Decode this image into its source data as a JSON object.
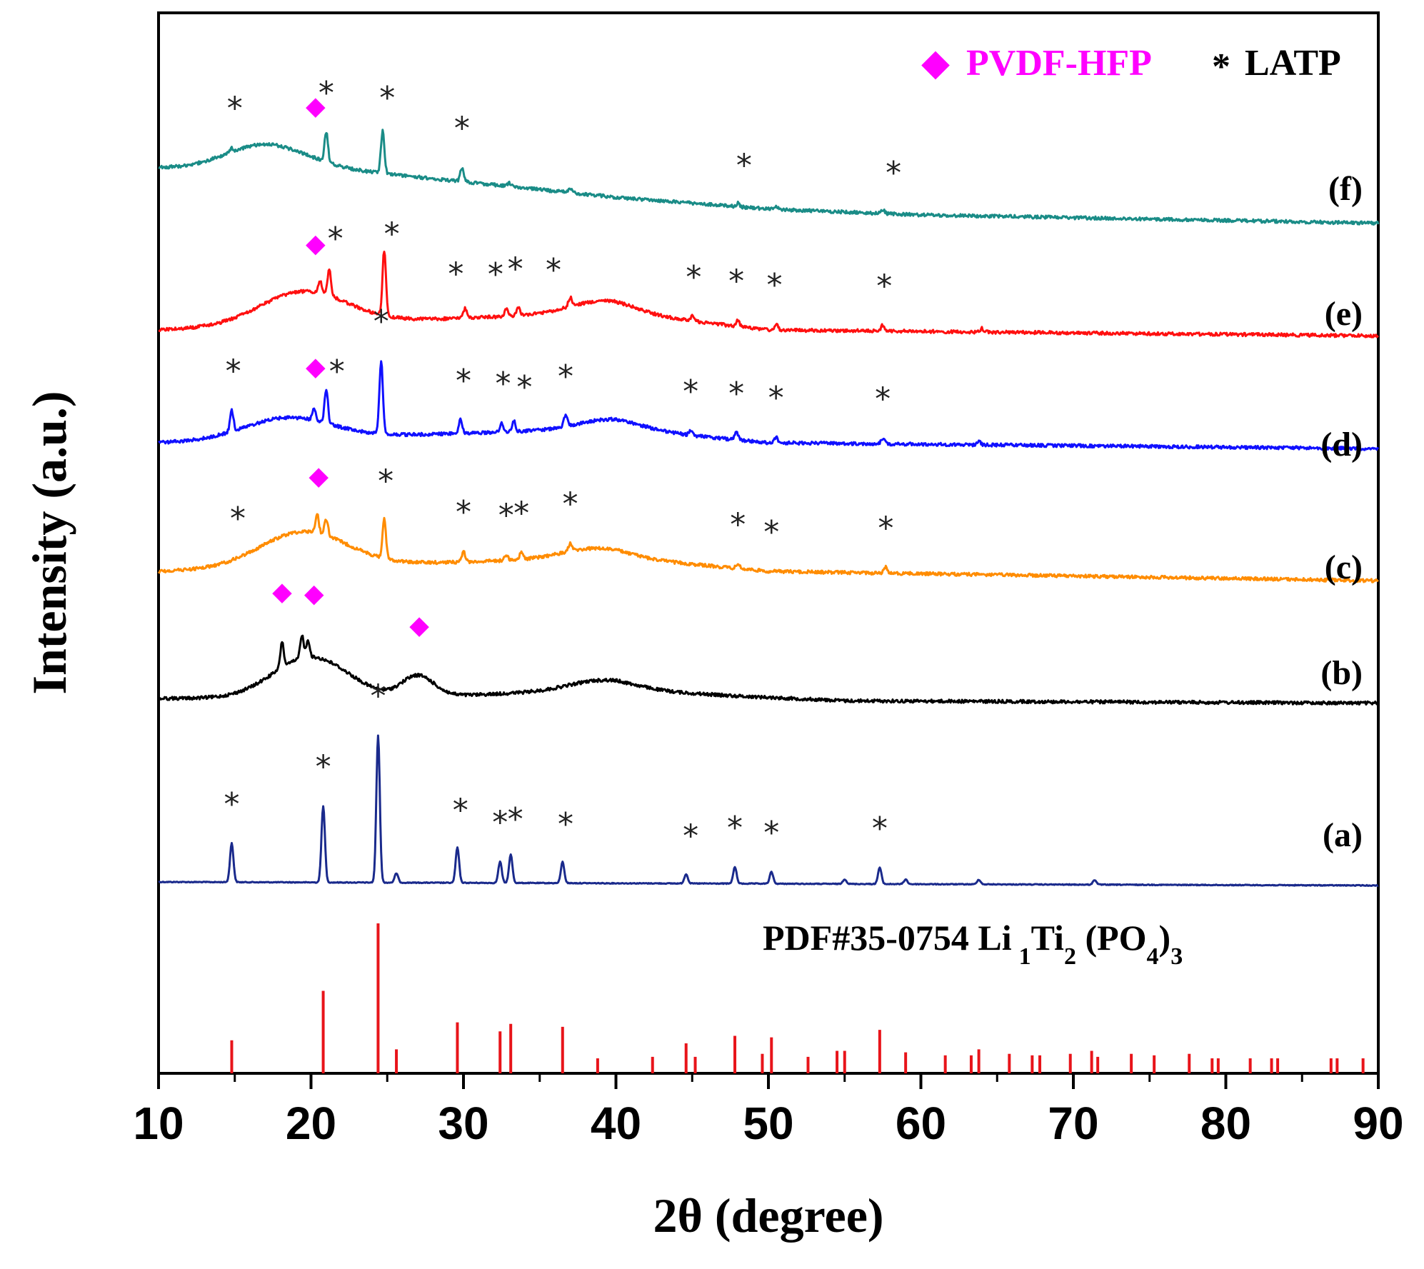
{
  "chart_data": {
    "type": "line",
    "title": "",
    "xlabel": "2θ (degree)",
    "ylabel": "Intensity (a.u.)",
    "xlim": [
      10,
      90
    ],
    "xticks": [
      10,
      20,
      30,
      40,
      50,
      60,
      70,
      80,
      90
    ],
    "yticks_shown": false,
    "legend": [
      {
        "marker": "◆",
        "label": "PVDF-HFP",
        "color": "#ff00ff",
        "position": "top-right"
      },
      {
        "marker": "*",
        "label": "LATP",
        "color": "#000000",
        "position": "top-right"
      }
    ],
    "reference": {
      "label_main": "PDF#35-0754 Li",
      "label_parts": [
        "1",
        "Ti",
        "2",
        " (PO",
        "4",
        ")",
        "3"
      ],
      "color": "#e8141a",
      "peaks": [
        [
          14.8,
          22
        ],
        [
          20.8,
          55
        ],
        [
          24.4,
          100
        ],
        [
          25.6,
          16
        ],
        [
          29.6,
          34
        ],
        [
          32.4,
          28
        ],
        [
          33.1,
          33
        ],
        [
          36.5,
          31
        ],
        [
          38.8,
          10
        ],
        [
          42.4,
          11
        ],
        [
          44.6,
          20
        ],
        [
          45.2,
          11
        ],
        [
          47.8,
          25
        ],
        [
          49.6,
          13
        ],
        [
          50.2,
          24
        ],
        [
          52.6,
          11
        ],
        [
          54.5,
          15
        ],
        [
          55.0,
          15
        ],
        [
          57.3,
          29
        ],
        [
          59.0,
          14
        ],
        [
          61.6,
          12
        ],
        [
          63.3,
          12
        ],
        [
          63.8,
          16
        ],
        [
          65.8,
          13
        ],
        [
          67.3,
          12
        ],
        [
          67.8,
          12
        ],
        [
          69.8,
          13
        ],
        [
          71.2,
          15
        ],
        [
          71.6,
          11
        ],
        [
          73.8,
          13
        ],
        [
          75.3,
          12
        ],
        [
          77.6,
          13
        ],
        [
          79.1,
          10
        ],
        [
          79.5,
          10
        ],
        [
          81.6,
          10
        ],
        [
          83.0,
          10
        ],
        [
          83.4,
          10
        ],
        [
          86.9,
          10
        ],
        [
          87.3,
          10
        ],
        [
          89.0,
          10
        ]
      ]
    },
    "series": [
      {
        "name": "(a)",
        "color": "#1a2a8c",
        "baseline": [
          [
            10,
            0
          ],
          [
            90,
            -3
          ]
        ],
        "bumps": [],
        "peaks": [
          [
            14.8,
            33
          ],
          [
            20.8,
            65
          ],
          [
            24.4,
            125
          ],
          [
            25.6,
            8
          ],
          [
            29.6,
            30
          ],
          [
            32.4,
            18
          ],
          [
            33.1,
            24
          ],
          [
            36.5,
            18
          ],
          [
            44.6,
            8
          ],
          [
            47.8,
            14
          ],
          [
            50.2,
            10
          ],
          [
            55.0,
            4
          ],
          [
            57.3,
            14
          ],
          [
            59.0,
            4
          ],
          [
            63.8,
            4
          ],
          [
            71.4,
            4
          ]
        ],
        "stars": [
          14.8,
          20.8,
          24.4,
          29.8,
          32.4,
          33.4,
          36.7,
          44.9,
          47.8,
          50.2,
          57.3
        ],
        "diamonds": []
      },
      {
        "name": "(b)",
        "color": "#000000",
        "baseline": [
          [
            10,
            0
          ],
          [
            25,
            0
          ],
          [
            40,
            8
          ],
          [
            48,
            2
          ],
          [
            55,
            -2
          ],
          [
            90,
            -4
          ]
        ],
        "bumps": [
          [
            20,
            3.5,
            35
          ],
          [
            27,
            1.5,
            18
          ],
          [
            39,
            3,
            8
          ]
        ],
        "peaks": [
          [
            18.1,
            22
          ],
          [
            19.4,
            20
          ],
          [
            19.8,
            15
          ]
        ],
        "stars": [],
        "diamonds": [
          18.1,
          20.2,
          27.1
        ]
      },
      {
        "name": "(c)",
        "color": "#ff8c00",
        "baseline": [
          [
            10,
            0
          ],
          [
            40,
            12
          ],
          [
            50,
            0
          ],
          [
            90,
            -8
          ]
        ],
        "bumps": [
          [
            19.5,
            4,
            30
          ],
          [
            38.5,
            3,
            8
          ]
        ],
        "peaks": [
          [
            20.4,
            16
          ],
          [
            21.0,
            14
          ],
          [
            24.8,
            33
          ],
          [
            30.0,
            9
          ],
          [
            32.8,
            5
          ],
          [
            33.8,
            6
          ],
          [
            37.0,
            7
          ],
          [
            48.0,
            4
          ],
          [
            57.7,
            5
          ]
        ],
        "stars": [
          15.2,
          24.9,
          30.0,
          32.8,
          33.8,
          37.0,
          48.0,
          50.2,
          57.7
        ],
        "diamonds": [
          20.5
        ]
      },
      {
        "name": "(d)",
        "color": "#1010ff",
        "baseline": [
          [
            10,
            0
          ],
          [
            40,
            12
          ],
          [
            50,
            0
          ],
          [
            90,
            -5
          ]
        ],
        "bumps": [
          [
            18.5,
            4,
            18
          ],
          [
            39.5,
            3,
            8
          ]
        ],
        "peaks": [
          [
            14.8,
            18
          ],
          [
            20.2,
            10
          ],
          [
            21.0,
            28
          ],
          [
            24.6,
            62
          ],
          [
            29.8,
            12
          ],
          [
            32.5,
            8
          ],
          [
            33.3,
            9
          ],
          [
            36.7,
            9
          ],
          [
            44.9,
            4
          ],
          [
            47.9,
            6
          ],
          [
            50.5,
            5
          ],
          [
            57.5,
            5
          ],
          [
            63.8,
            3
          ]
        ],
        "stars": [
          14.9,
          21.7,
          24.6,
          30.0,
          32.6,
          34.0,
          36.7,
          44.9,
          47.9,
          50.5,
          57.5
        ],
        "diamonds": [
          20.3
        ]
      },
      {
        "name": "(e)",
        "color": "#ff1010",
        "baseline": [
          [
            10,
            0
          ],
          [
            40,
            15
          ],
          [
            50,
            0
          ],
          [
            90,
            -5
          ]
        ],
        "bumps": [
          [
            19.5,
            4,
            28
          ],
          [
            39,
            3,
            10
          ]
        ],
        "peaks": [
          [
            20.6,
            10
          ],
          [
            21.2,
            22
          ],
          [
            24.8,
            55
          ],
          [
            30.1,
            8
          ],
          [
            32.8,
            6
          ],
          [
            33.6,
            7
          ],
          [
            37.0,
            8
          ],
          [
            45.0,
            4
          ],
          [
            48.0,
            5
          ],
          [
            50.5,
            5
          ],
          [
            57.5,
            5
          ],
          [
            64.0,
            3
          ]
        ],
        "stars": [
          21.6,
          25.3,
          29.5,
          32.1,
          33.4,
          35.9,
          45.1,
          47.9,
          50.4,
          57.6
        ],
        "diamonds": [
          20.3
        ]
      },
      {
        "name": "(f)",
        "color": "#1a8c87",
        "baseline": [
          [
            10,
            0
          ],
          [
            21,
            0
          ],
          [
            40,
            -25
          ],
          [
            50,
            -35
          ],
          [
            60,
            -40
          ],
          [
            90,
            -47
          ]
        ],
        "bumps": [
          [
            17,
            3.5,
            20
          ]
        ],
        "peaks": [
          [
            14.8,
            3
          ],
          [
            21.0,
            25
          ],
          [
            24.7,
            36
          ],
          [
            29.9,
            12
          ],
          [
            33.0,
            3
          ],
          [
            37.0,
            3
          ],
          [
            48.0,
            3
          ],
          [
            50.5,
            3
          ],
          [
            57.5,
            3
          ]
        ],
        "stars": [
          15.0,
          21.0,
          25.0,
          29.9,
          48.4,
          58.2
        ],
        "diamonds": [
          20.3
        ]
      }
    ]
  }
}
